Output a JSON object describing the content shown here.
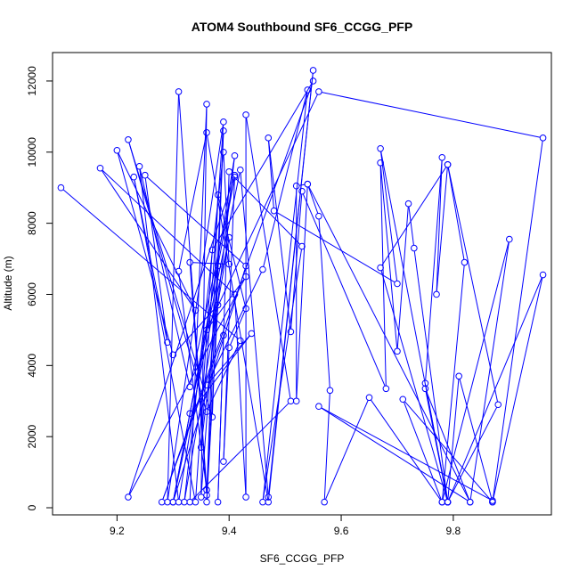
{
  "chart_data": {
    "type": "line",
    "title": "ATOM4 Southbound SF6_CCGG_PFP",
    "xlabel": "SF6_CCGG_PFP",
    "ylabel": "Altitude (m)",
    "xlim": [
      9.085,
      9.975
    ],
    "ylim": [
      -200,
      12800
    ],
    "x_ticks": [
      9.2,
      9.4,
      9.6,
      9.8
    ],
    "x_tick_labels": [
      "9.2",
      "9.4",
      "9.6",
      "9.8"
    ],
    "y_ticks": [
      0,
      2000,
      4000,
      6000,
      8000,
      10000,
      12000
    ],
    "y_tick_labels": [
      "0",
      "2000",
      "4000",
      "6000",
      "8000",
      "10000",
      "12000"
    ],
    "grid": false,
    "legend": "none",
    "colors": {
      "series": "#0000ff",
      "axes": "#000000"
    },
    "series": [
      {
        "points": [
          {
            "x": 9.1,
            "y": 9000
          },
          {
            "x": 9.42,
            "y": 4700
          },
          {
            "x": 9.36,
            "y": 2700
          },
          {
            "x": 9.22,
            "y": 10350
          },
          {
            "x": 9.37,
            "y": 2550
          },
          {
            "x": 9.39,
            "y": 10600
          },
          {
            "x": 9.36,
            "y": 160
          },
          {
            "x": 9.38,
            "y": 5700
          },
          {
            "x": 9.3,
            "y": 4300
          },
          {
            "x": 9.2,
            "y": 10050
          },
          {
            "x": 9.34,
            "y": 5550
          },
          {
            "x": 9.17,
            "y": 9550
          },
          {
            "x": 9.41,
            "y": 6000
          },
          {
            "x": 9.43,
            "y": 300
          },
          {
            "x": 9.43,
            "y": 11050
          },
          {
            "x": 9.51,
            "y": 3000
          },
          {
            "x": 9.33,
            "y": 160
          },
          {
            "x": 9.36,
            "y": 11350
          },
          {
            "x": 9.35,
            "y": 300
          },
          {
            "x": 9.38,
            "y": 6800
          },
          {
            "x": 9.3,
            "y": 160
          },
          {
            "x": 9.41,
            "y": 9300
          },
          {
            "x": 9.33,
            "y": 3400
          },
          {
            "x": 9.24,
            "y": 9600
          },
          {
            "x": 9.31,
            "y": 160
          },
          {
            "x": 9.41,
            "y": 9900
          },
          {
            "x": 9.35,
            "y": 1700
          },
          {
            "x": 9.39,
            "y": 10850
          },
          {
            "x": 9.29,
            "y": 160
          },
          {
            "x": 9.31,
            "y": 11700
          },
          {
            "x": 9.36,
            "y": 500
          },
          {
            "x": 9.31,
            "y": 6650
          },
          {
            "x": 9.36,
            "y": 10550
          },
          {
            "x": 9.47,
            "y": 160
          },
          {
            "x": 9.55,
            "y": 12300
          },
          {
            "x": 9.47,
            "y": 300
          },
          {
            "x": 9.42,
            "y": 9500
          },
          {
            "x": 9.33,
            "y": 2650
          },
          {
            "x": 9.44,
            "y": 4900
          },
          {
            "x": 9.36,
            "y": 3450
          },
          {
            "x": 9.46,
            "y": 6700
          },
          {
            "x": 9.54,
            "y": 11750
          },
          {
            "x": 9.46,
            "y": 160
          },
          {
            "x": 9.53,
            "y": 7350
          },
          {
            "x": 9.4,
            "y": 9450
          },
          {
            "x": 9.38,
            "y": 160
          },
          {
            "x": 9.39,
            "y": 4850
          },
          {
            "x": 9.28,
            "y": 160
          },
          {
            "x": 9.55,
            "y": 12000
          },
          {
            "x": 9.37,
            "y": 7250
          },
          {
            "x": 9.34,
            "y": 160
          },
          {
            "x": 9.23,
            "y": 9300
          },
          {
            "x": 9.29,
            "y": 4650
          },
          {
            "x": 9.25,
            "y": 9350
          },
          {
            "x": 9.43,
            "y": 6800
          },
          {
            "x": 9.3,
            "y": 160
          },
          {
            "x": 9.4,
            "y": 7600
          },
          {
            "x": 9.32,
            "y": 160
          },
          {
            "x": 9.39,
            "y": 10000
          },
          {
            "x": 9.4,
            "y": 6850
          },
          {
            "x": 9.33,
            "y": 6900
          },
          {
            "x": 9.36,
            "y": 350
          },
          {
            "x": 9.38,
            "y": 8800
          },
          {
            "x": 9.43,
            "y": 5600
          },
          {
            "x": 9.4,
            "y": 4500
          },
          {
            "x": 9.39,
            "y": 1300
          },
          {
            "x": 9.41,
            "y": 9350
          },
          {
            "x": 9.22,
            "y": 300
          },
          {
            "x": 9.43,
            "y": 6500
          },
          {
            "x": 9.36,
            "y": 5000
          },
          {
            "x": 9.56,
            "y": 11700
          },
          {
            "x": 9.96,
            "y": 10400
          },
          {
            "x": 9.87,
            "y": 160
          },
          {
            "x": 9.96,
            "y": 6550
          },
          {
            "x": 9.79,
            "y": 160
          },
          {
            "x": 9.67,
            "y": 10100
          },
          {
            "x": 9.7,
            "y": 6300
          },
          {
            "x": 9.48,
            "y": 8350
          },
          {
            "x": 9.47,
            "y": 10400
          },
          {
            "x": 9.51,
            "y": 4950
          },
          {
            "x": 9.53,
            "y": 8900
          },
          {
            "x": 9.68,
            "y": 3350
          },
          {
            "x": 9.67,
            "y": 9700
          },
          {
            "x": 9.7,
            "y": 4400
          },
          {
            "x": 9.72,
            "y": 8550
          },
          {
            "x": 9.73,
            "y": 7300
          },
          {
            "x": 9.79,
            "y": 160
          },
          {
            "x": 9.75,
            "y": 3500
          },
          {
            "x": 9.78,
            "y": 9850
          },
          {
            "x": 9.77,
            "y": 6000
          },
          {
            "x": 9.79,
            "y": 9650
          },
          {
            "x": 9.82,
            "y": 6900
          },
          {
            "x": 9.78,
            "y": 160
          },
          {
            "x": 9.9,
            "y": 7550
          },
          {
            "x": 9.83,
            "y": 160
          },
          {
            "x": 9.75,
            "y": 3350
          },
          {
            "x": 9.79,
            "y": 160
          },
          {
            "x": 9.67,
            "y": 6750
          },
          {
            "x": 9.79,
            "y": 9650
          },
          {
            "x": 9.88,
            "y": 2900
          },
          {
            "x": 9.79,
            "y": 160
          },
          {
            "x": 9.81,
            "y": 3700
          },
          {
            "x": 9.87,
            "y": 160
          },
          {
            "x": 9.71,
            "y": 3050
          },
          {
            "x": 9.78,
            "y": 160
          },
          {
            "x": 9.65,
            "y": 3100
          },
          {
            "x": 9.57,
            "y": 160
          },
          {
            "x": 9.58,
            "y": 3300
          },
          {
            "x": 9.56,
            "y": 8200
          },
          {
            "x": 9.54,
            "y": 9100
          },
          {
            "x": 9.52,
            "y": 9050
          },
          {
            "x": 9.52,
            "y": 3000
          },
          {
            "x": 9.54,
            "y": 9100
          },
          {
            "x": 9.83,
            "y": 160
          },
          {
            "x": 9.56,
            "y": 2850
          },
          {
            "x": 9.87,
            "y": 200
          }
        ]
      }
    ]
  }
}
